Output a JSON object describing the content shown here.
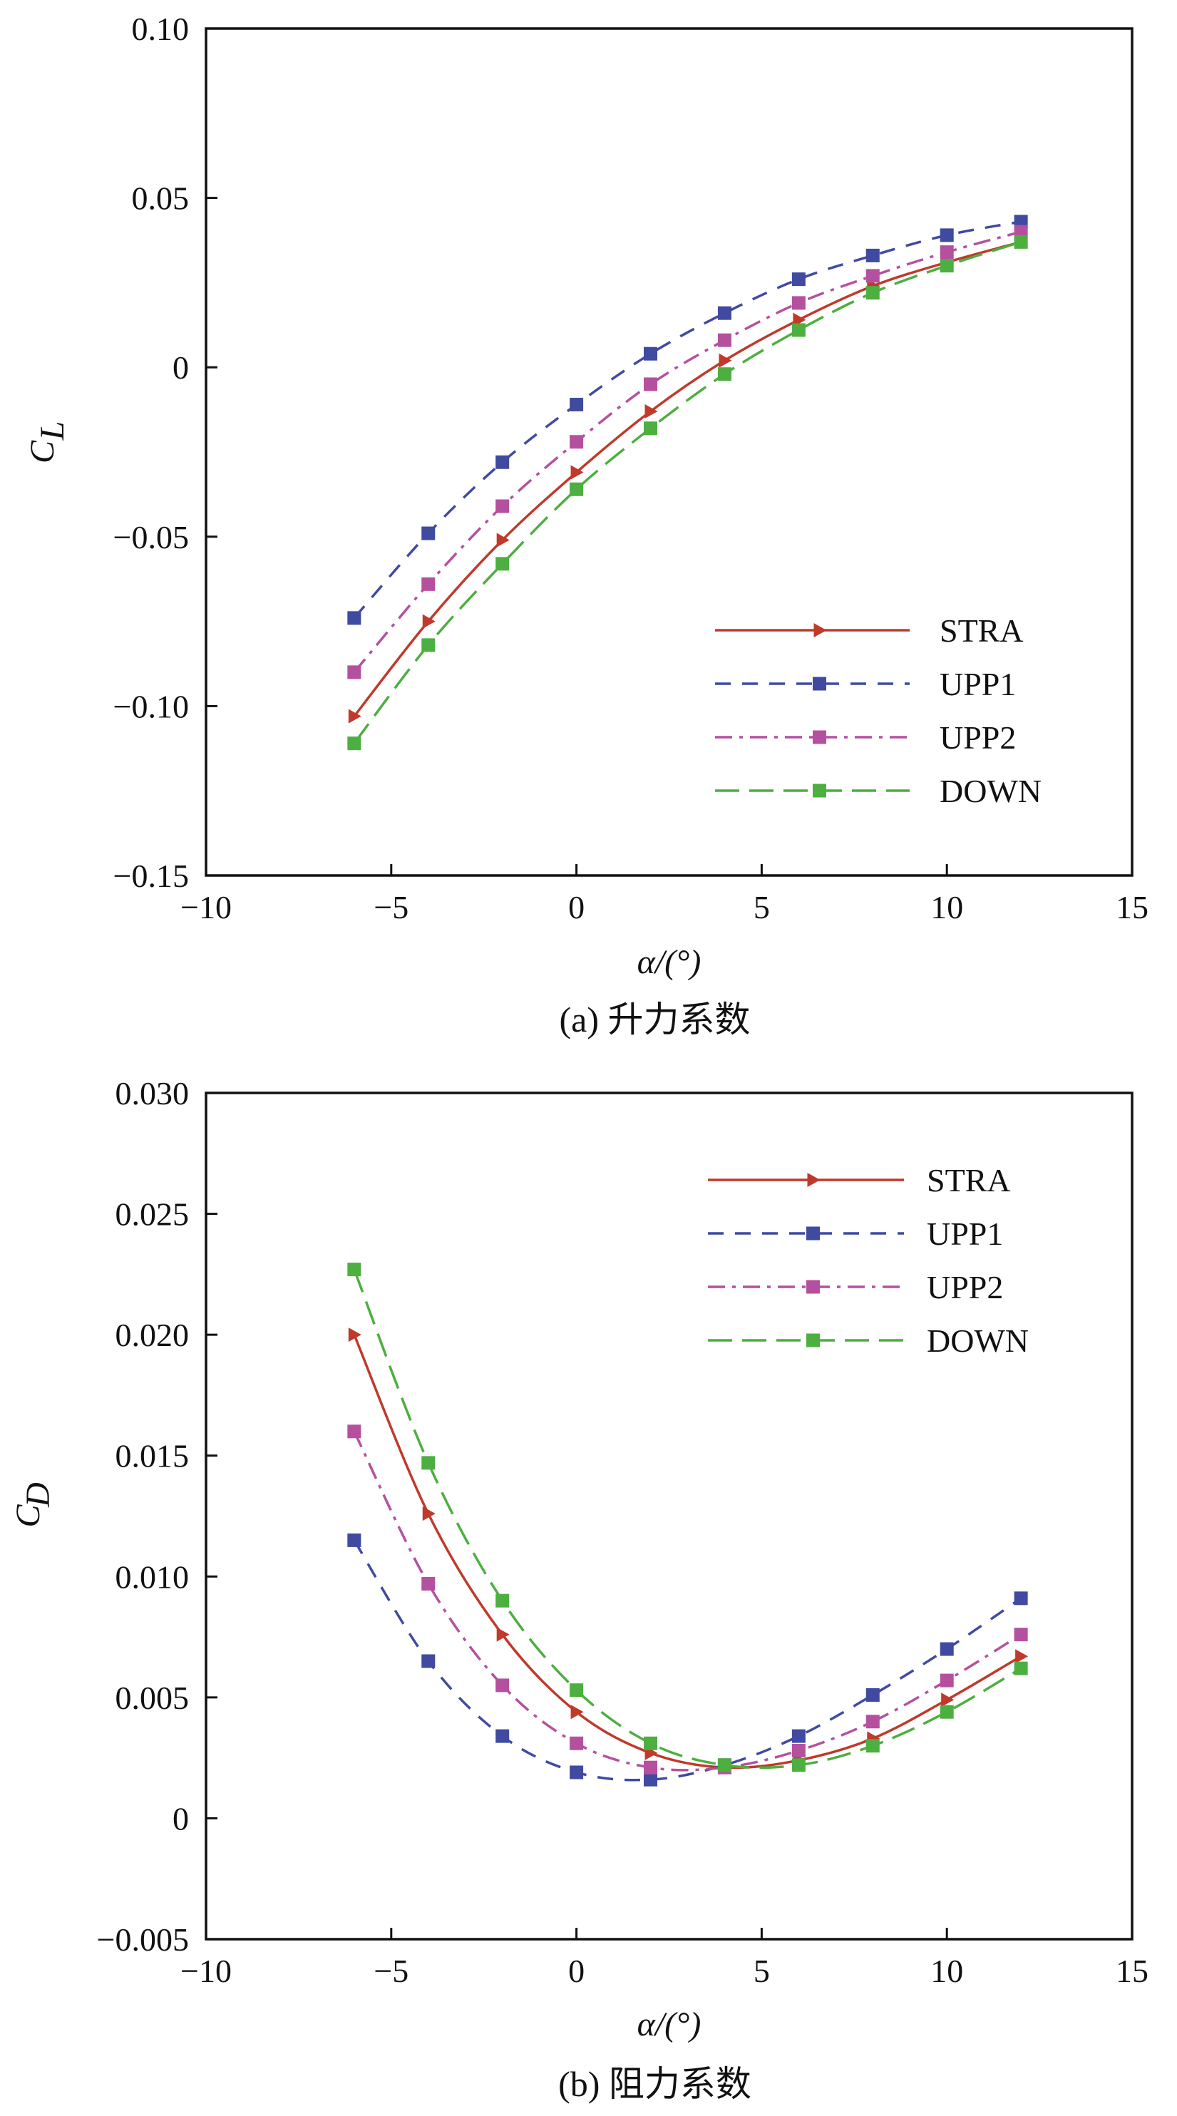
{
  "chart_data": [
    {
      "type": "line",
      "panel": "a",
      "caption": "(a) 升力系数",
      "xlabel": "α/(°)",
      "ylabel": "C",
      "ylabel_sub": "L",
      "xlim": [
        -10,
        15
      ],
      "ylim": [
        -0.15,
        0.1
      ],
      "xticks": [
        -10,
        -5,
        0,
        5,
        10,
        15
      ],
      "xtick_labels": [
        "−10",
        "−5",
        "0",
        "5",
        "10",
        "15"
      ],
      "yticks": [
        -0.15,
        -0.1,
        -0.05,
        0,
        0.05,
        0.1
      ],
      "ytick_labels": [
        "−0.15",
        "−0.10",
        "−0.05",
        "0",
        "0.05",
        "0.10"
      ],
      "legend_position": "bottom-right",
      "x": [
        -6,
        -4,
        -2,
        0,
        2,
        4,
        6,
        8,
        10,
        12
      ],
      "series": [
        {
          "name": "STRA",
          "color": "#c0392b",
          "dash": "solid",
          "marker": "triangle",
          "values": [
            -0.103,
            -0.075,
            -0.051,
            -0.031,
            -0.013,
            0.002,
            0.014,
            0.024,
            0.031,
            0.037
          ]
        },
        {
          "name": "UPP1",
          "color": "#3f4aa0",
          "dash": "dashed",
          "marker": "square",
          "values": [
            -0.074,
            -0.049,
            -0.028,
            -0.011,
            0.004,
            0.016,
            0.026,
            0.033,
            0.039,
            0.043
          ]
        },
        {
          "name": "UPP2",
          "color": "#b5509f",
          "dash": "dashdot",
          "marker": "square",
          "values": [
            -0.09,
            -0.064,
            -0.041,
            -0.022,
            -0.005,
            0.008,
            0.019,
            0.027,
            0.034,
            0.04
          ]
        },
        {
          "name": "DOWN",
          "color": "#4caf3f",
          "dash": "longdash",
          "marker": "square",
          "values": [
            -0.111,
            -0.082,
            -0.058,
            -0.036,
            -0.018,
            -0.002,
            0.011,
            0.022,
            0.03,
            0.037
          ]
        }
      ]
    },
    {
      "type": "line",
      "panel": "b",
      "caption": "(b) 阻力系数",
      "xlabel": "α/(°)",
      "ylabel": "C",
      "ylabel_sub": "D",
      "xlim": [
        -10,
        15
      ],
      "ylim": [
        -0.005,
        0.03
      ],
      "xticks": [
        -10,
        -5,
        0,
        5,
        10,
        15
      ],
      "xtick_labels": [
        "−10",
        "−5",
        "0",
        "5",
        "10",
        "15"
      ],
      "yticks": [
        -0.005,
        0,
        0.005,
        0.01,
        0.015,
        0.02,
        0.025,
        0.03
      ],
      "ytick_labels": [
        "−0.005",
        "0",
        "0.005",
        "0.010",
        "0.015",
        "0.020",
        "0.025",
        "0.030"
      ],
      "legend_position": "top-right",
      "x": [
        -6,
        -4,
        -2,
        0,
        2,
        4,
        6,
        8,
        10,
        12
      ],
      "series": [
        {
          "name": "STRA",
          "color": "#c0392b",
          "dash": "solid",
          "marker": "triangle",
          "values": [
            0.02,
            0.0126,
            0.0076,
            0.0044,
            0.0027,
            0.0021,
            0.0024,
            0.0033,
            0.0049,
            0.0067
          ]
        },
        {
          "name": "UPP1",
          "color": "#3f4aa0",
          "dash": "dashed",
          "marker": "square",
          "values": [
            0.0115,
            0.0065,
            0.0034,
            0.0019,
            0.0016,
            0.0022,
            0.0034,
            0.0051,
            0.007,
            0.0091
          ]
        },
        {
          "name": "UPP2",
          "color": "#b5509f",
          "dash": "dashdot",
          "marker": "square",
          "values": [
            0.016,
            0.0097,
            0.0055,
            0.0031,
            0.0021,
            0.0021,
            0.0028,
            0.004,
            0.0057,
            0.0076
          ]
        },
        {
          "name": "DOWN",
          "color": "#4caf3f",
          "dash": "longdash",
          "marker": "square",
          "values": [
            0.0227,
            0.0147,
            0.009,
            0.0053,
            0.0031,
            0.0022,
            0.0022,
            0.003,
            0.0044,
            0.0062
          ]
        }
      ]
    }
  ]
}
